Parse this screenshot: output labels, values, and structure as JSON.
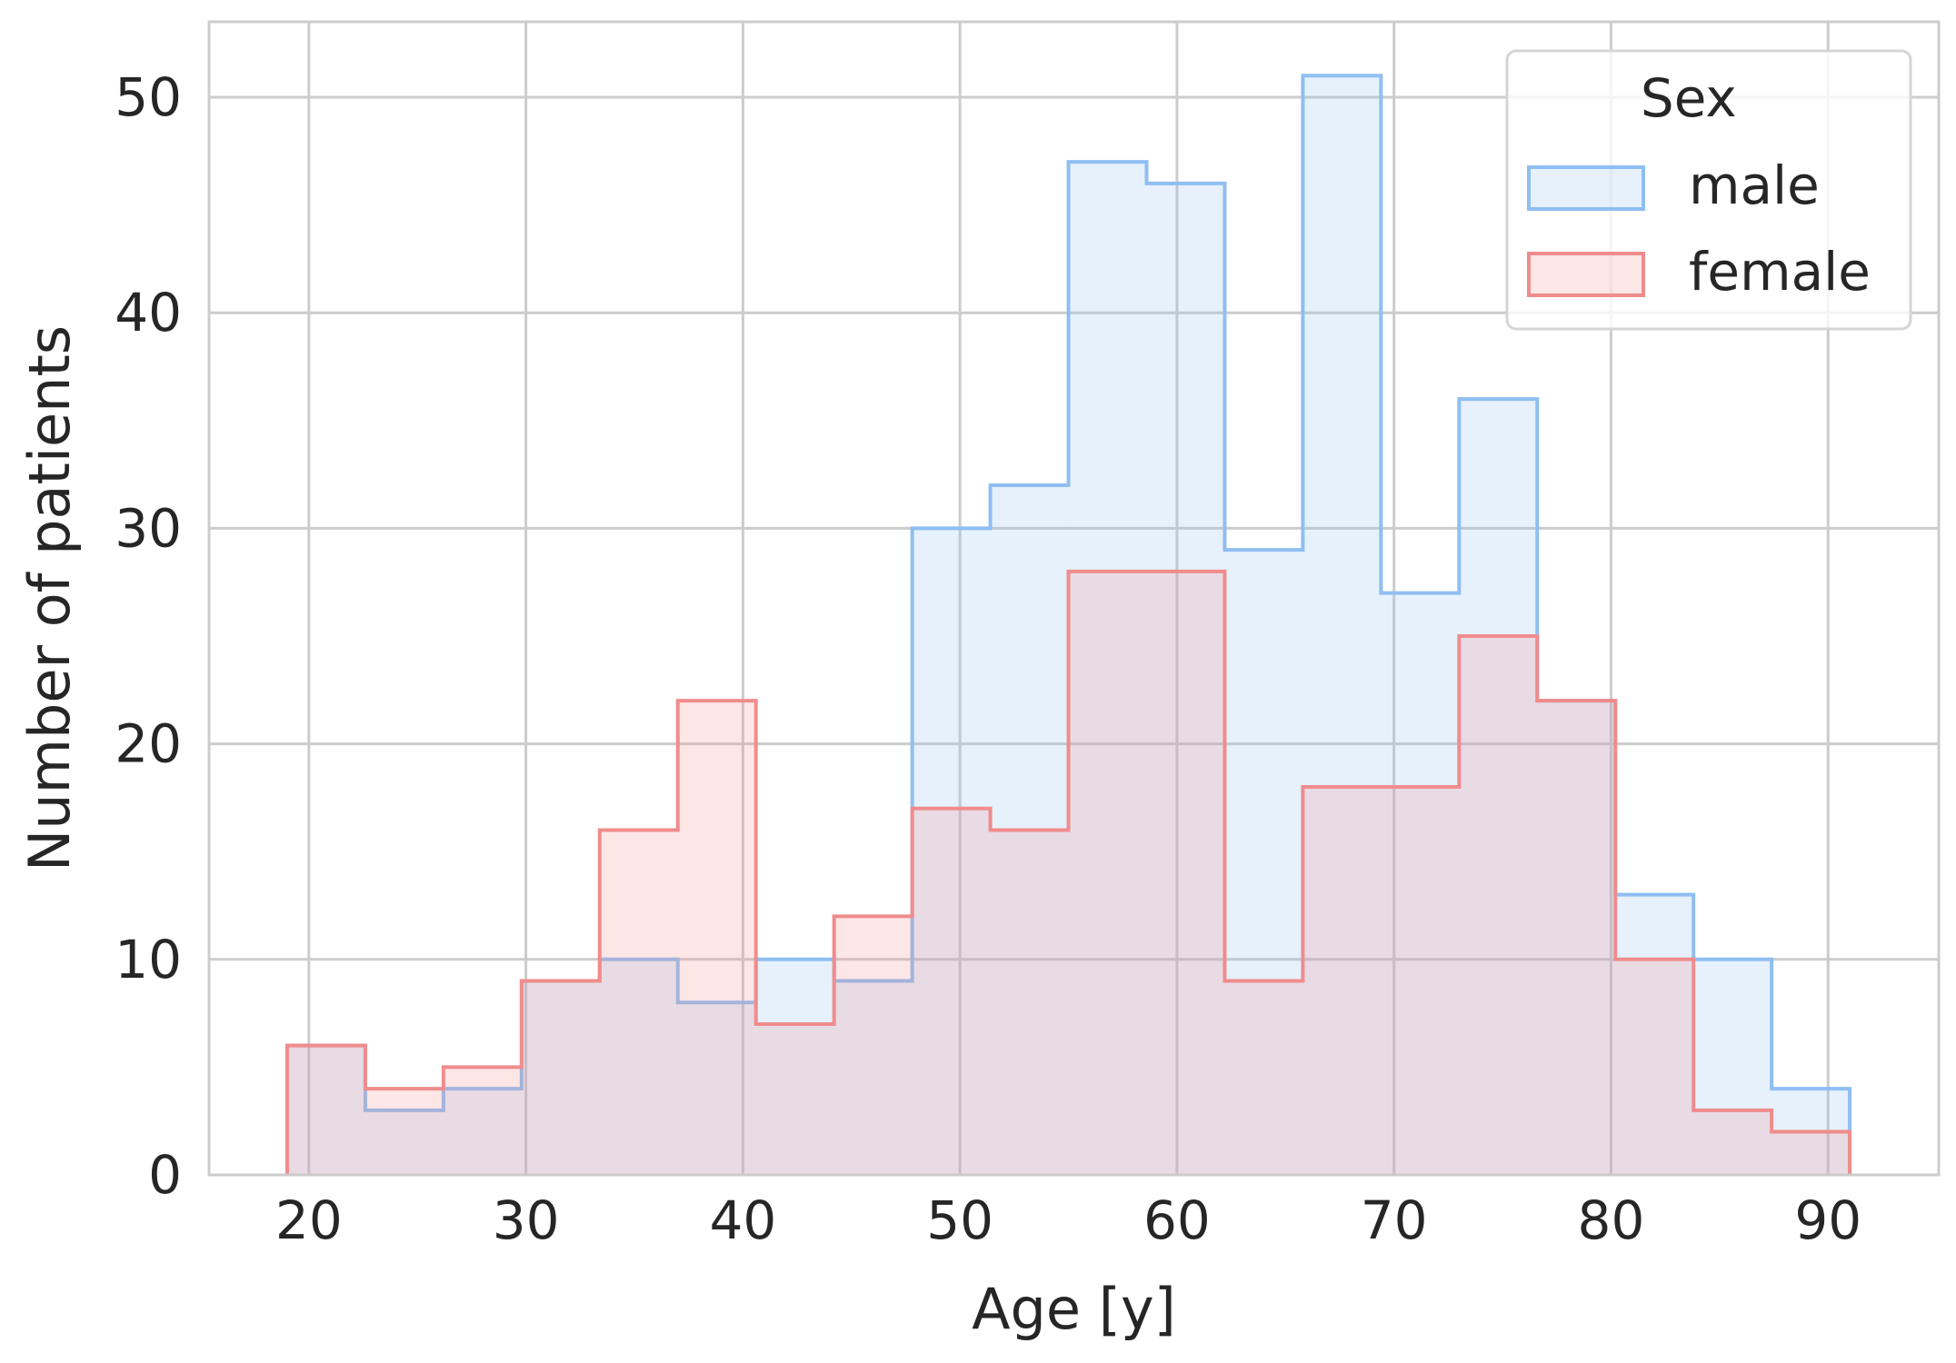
{
  "chart_data": {
    "type": "histogram",
    "title": "",
    "xlabel": "Age [y]",
    "ylabel": "Number of patients",
    "xlim": [
      15.4,
      95.1
    ],
    "ylim": [
      0,
      53.5
    ],
    "xticks": [
      20,
      30,
      40,
      50,
      60,
      70,
      80,
      90
    ],
    "xtick_labels": [
      "20",
      "30",
      "40",
      "50",
      "60",
      "70",
      "80",
      "90"
    ],
    "yticks": [
      0,
      10,
      20,
      30,
      40,
      50
    ],
    "ytick_labels": [
      "0",
      "10",
      "20",
      "30",
      "40",
      "50"
    ],
    "grid": true,
    "bin_edges": [
      19.0,
      22.6,
      26.2,
      29.8,
      33.4,
      37.0,
      40.6,
      44.2,
      47.8,
      51.4,
      55.0,
      58.6,
      62.2,
      65.8,
      69.4,
      73.0,
      76.6,
      80.2,
      83.8,
      87.4,
      91.0
    ],
    "series": [
      {
        "name": "male",
        "values": [
          6,
          3,
          4,
          9,
          10,
          8,
          10,
          9,
          30,
          32,
          47,
          46,
          29,
          51,
          27,
          36,
          22,
          13,
          10,
          4
        ],
        "color": "#8fbef2"
      },
      {
        "name": "female",
        "values": [
          6,
          4,
          5,
          9,
          16,
          22,
          7,
          12,
          17,
          16,
          28,
          28,
          9,
          18,
          18,
          25,
          22,
          10,
          3,
          2
        ],
        "color": "#f08c8c"
      }
    ],
    "legend": {
      "title": "Sex",
      "position": "top-right",
      "entries": [
        "male",
        "female"
      ]
    }
  }
}
